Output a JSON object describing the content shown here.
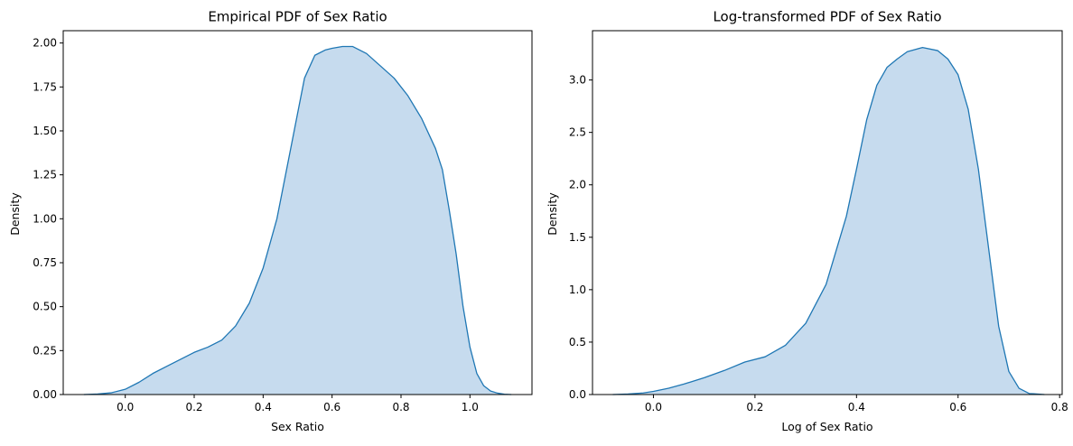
{
  "chart_data": [
    {
      "type": "area",
      "title": "Empirical PDF of Sex Ratio",
      "xlabel": "Sex Ratio",
      "ylabel": "Density",
      "xlim": [
        -0.18,
        1.18
      ],
      "ylim": [
        0,
        2.07
      ],
      "xticks": [
        0.0,
        0.2,
        0.4,
        0.6,
        0.8,
        1.0
      ],
      "xtick_labels": [
        "0.0",
        "0.2",
        "0.4",
        "0.6",
        "0.8",
        "1.0"
      ],
      "yticks": [
        0.0,
        0.25,
        0.5,
        0.75,
        1.0,
        1.25,
        1.5,
        1.75,
        2.0
      ],
      "ytick_labels": [
        "0.00",
        "0.25",
        "0.50",
        "0.75",
        "1.00",
        "1.25",
        "1.50",
        "1.75",
        "2.00"
      ],
      "color": "#1f77b4",
      "fill_color": "#c6dbee",
      "grid": false,
      "series": [
        {
          "x": [
            -0.12,
            -0.08,
            -0.04,
            0.0,
            0.04,
            0.08,
            0.12,
            0.16,
            0.2,
            0.24,
            0.28,
            0.32,
            0.36,
            0.4,
            0.44,
            0.48,
            0.52,
            0.55,
            0.58,
            0.6,
            0.63,
            0.66,
            0.7,
            0.74,
            0.78,
            0.82,
            0.86,
            0.9,
            0.92,
            0.94,
            0.96,
            0.98,
            1.0,
            1.02,
            1.04,
            1.06,
            1.08,
            1.1,
            1.12
          ],
          "y": [
            0.0,
            0.003,
            0.01,
            0.03,
            0.07,
            0.12,
            0.16,
            0.2,
            0.24,
            0.27,
            0.31,
            0.39,
            0.52,
            0.72,
            1.0,
            1.4,
            1.8,
            1.93,
            1.96,
            1.97,
            1.98,
            1.98,
            1.94,
            1.87,
            1.8,
            1.7,
            1.57,
            1.4,
            1.28,
            1.05,
            0.8,
            0.5,
            0.27,
            0.12,
            0.05,
            0.02,
            0.008,
            0.002,
            0.0
          ]
        }
      ]
    },
    {
      "type": "area",
      "title": "Log-transformed PDF of Sex Ratio",
      "xlabel": "Log of Sex Ratio",
      "ylabel": "Density",
      "xlim": [
        -0.12,
        0.805
      ],
      "ylim": [
        0,
        3.47
      ],
      "xticks": [
        0.0,
        0.2,
        0.4,
        0.6,
        0.8
      ],
      "xtick_labels": [
        "0.0",
        "0.2",
        "0.4",
        "0.6",
        "0.8"
      ],
      "yticks": [
        0.0,
        0.5,
        1.0,
        1.5,
        2.0,
        2.5,
        3.0
      ],
      "ytick_labels": [
        "0.0",
        "0.5",
        "1.0",
        "1.5",
        "2.0",
        "2.5",
        "3.0"
      ],
      "color": "#1f77b4",
      "fill_color": "#c6dbee",
      "grid": false,
      "series": [
        {
          "x": [
            -0.08,
            -0.05,
            -0.02,
            0.0,
            0.03,
            0.06,
            0.1,
            0.14,
            0.18,
            0.22,
            0.26,
            0.3,
            0.34,
            0.38,
            0.4,
            0.42,
            0.44,
            0.46,
            0.48,
            0.5,
            0.53,
            0.56,
            0.58,
            0.6,
            0.62,
            0.64,
            0.66,
            0.68,
            0.7,
            0.72,
            0.74,
            0.77
          ],
          "y": [
            0.0,
            0.005,
            0.015,
            0.03,
            0.06,
            0.1,
            0.16,
            0.23,
            0.31,
            0.36,
            0.47,
            0.68,
            1.05,
            1.7,
            2.15,
            2.62,
            2.95,
            3.12,
            3.2,
            3.27,
            3.31,
            3.28,
            3.2,
            3.05,
            2.72,
            2.15,
            1.4,
            0.65,
            0.22,
            0.06,
            0.01,
            0.0
          ]
        }
      ]
    }
  ]
}
